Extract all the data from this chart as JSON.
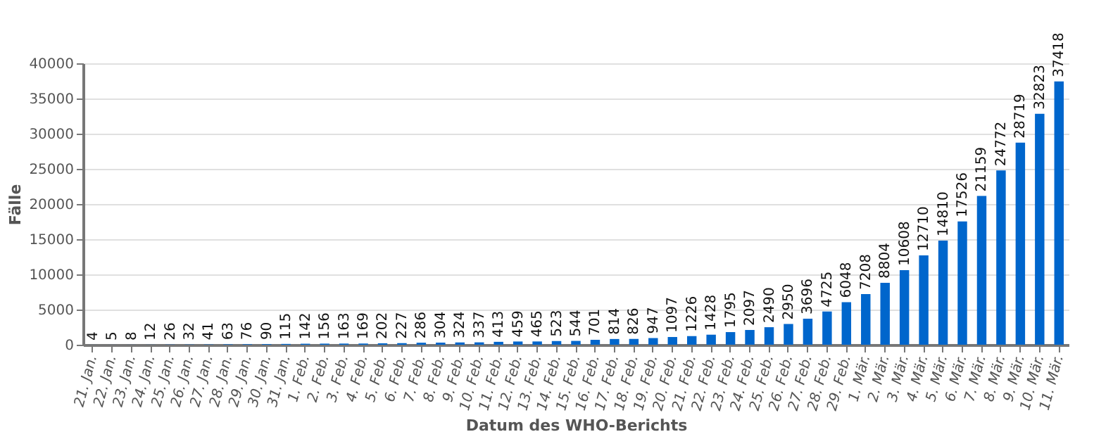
{
  "chart_data": {
    "type": "bar",
    "xlabel": "Datum des WHO-Berichts",
    "ylabel": "Fälle",
    "categories": [
      "21. Jan.",
      "22. Jan.",
      "23. Jan.",
      "24. Jan.",
      "25. Jan.",
      "26. Jan.",
      "27. Jan.",
      "28. Jan.",
      "29. Jan.",
      "30. Jan.",
      "31. Jan.",
      "1. Feb.",
      "2. Feb.",
      "3. Feb.",
      "4. Feb.",
      "5. Feb.",
      "6. Feb.",
      "7. Feb.",
      "8. Feb.",
      "9. Feb.",
      "10. Feb.",
      "11. Feb.",
      "12. Feb.",
      "13. Feb.",
      "14. Feb.",
      "15. Feb.",
      "16. Feb.",
      "17. Feb.",
      "18. Feb.",
      "19. Feb.",
      "20. Feb.",
      "21. Feb.",
      "22. Feb.",
      "23. Feb.",
      "24. Feb.",
      "25. Feb.",
      "26. Feb.",
      "27. Feb.",
      "28. Feb.",
      "29. Feb.",
      "1. Mär.",
      "2. Mär.",
      "3. Mär.",
      "4. Mär.",
      "5. Mär.",
      "6. Mär.",
      "7. Mär.",
      "8. Mär.",
      "9. Mär.",
      "10. Mär.",
      "11. Mär."
    ],
    "values": [
      4,
      5,
      8,
      12,
      26,
      32,
      41,
      63,
      76,
      90,
      115,
      142,
      156,
      163,
      169,
      202,
      227,
      286,
      304,
      324,
      337,
      413,
      459,
      465,
      523,
      544,
      701,
      814,
      826,
      947,
      1097,
      1226,
      1428,
      1795,
      2097,
      2490,
      2950,
      3696,
      4725,
      6048,
      7208,
      8804,
      10608,
      12710,
      14810,
      17526,
      21159,
      24772,
      28719,
      32823,
      37418
    ],
    "color": "#0066cc",
    "ylim": [
      0,
      40000
    ],
    "yticks": [
      0,
      5000,
      10000,
      15000,
      20000,
      25000,
      30000,
      35000,
      40000
    ],
    "grid": "y",
    "data_labels": true
  }
}
